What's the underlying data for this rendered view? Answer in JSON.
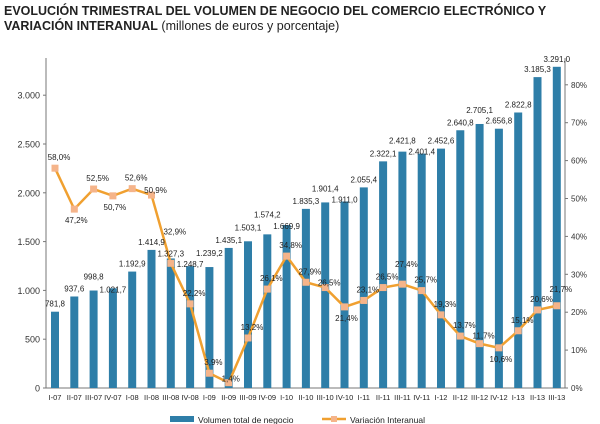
{
  "chart_data": {
    "type": "bar+line",
    "title": "EVOLUCIÓN TRIMESTRAL DEL VOLUMEN DE NEGOCIO DEL COMERCIO ELECTRÓNICO Y VARIACIÓN INTERANUAL",
    "subtitle": "(millones de euros y porcentaje)",
    "categories": [
      "I-07",
      "II-07",
      "III-07",
      "IV-07",
      "I-08",
      "II-08",
      "III-08",
      "IV-08",
      "I-09",
      "II-09",
      "III-09",
      "IV-09",
      "I-10",
      "II-10",
      "III-10",
      "IV-10",
      "I-11",
      "II-11",
      "III-11",
      "IV-11",
      "I-12",
      "II-12",
      "III-12",
      "IV-12",
      "I-13",
      "II-13",
      "III-13"
    ],
    "series": [
      {
        "name": "Volumen total de negocio",
        "type": "bar",
        "axis": "left",
        "color": "#2e7ea8",
        "values": [
          781.8,
          937.6,
          998.8,
          1021.7,
          1192.9,
          1414.9,
          1327.3,
          1248.7,
          1239.2,
          1435.1,
          1503.1,
          1574.2,
          1669.9,
          1835.3,
          1901.4,
          1911.0,
          2055.4,
          2322.1,
          2421.8,
          2401.4,
          2452.6,
          2640.8,
          2705.1,
          2656.8,
          2822.8,
          3185.3,
          3291.0
        ],
        "labels": [
          "781,8",
          "937,6",
          "998,8",
          "1.021,7",
          "1.192,9",
          "1.414,9",
          "1.327,3",
          "1.248,7",
          "1.239,2",
          "1.435,1",
          "1.503,1",
          "1.574,2",
          "1.669,9",
          "1.835,3",
          "1.901,4",
          "1.911,0",
          "2.055,4",
          "2.322,1",
          "2.421,8",
          "2.401,4",
          "2.452,6",
          "2.640,8",
          "2.705,1",
          "2.656,8",
          "2.822,8",
          "3.185,3",
          "3.291,0"
        ]
      },
      {
        "name": "Variación Interanual",
        "type": "line",
        "axis": "right",
        "color": "#f0a030",
        "marker_color": "#f5b48a",
        "values": [
          58.0,
          47.2,
          52.5,
          50.7,
          52.6,
          50.9,
          32.9,
          22.2,
          3.9,
          1.4,
          13.2,
          26.1,
          34.8,
          27.9,
          26.5,
          21.4,
          23.1,
          26.5,
          27.4,
          25.7,
          19.3,
          13.7,
          11.7,
          10.6,
          15.1,
          20.6,
          21.7
        ],
        "labels": [
          "58,0%",
          "47,2%",
          "52,5%",
          "50,7%",
          "52,6%",
          "50,9%",
          "32,9%",
          "22,2%",
          "3,9%",
          "1,4%",
          "13,2%",
          "26,1%",
          "34,8%",
          "27,9%",
          "26,5%",
          "21,4%",
          "23,1%",
          "26,5%",
          "27,4%",
          "25,7%",
          "19,3%",
          "13,7%",
          "11,7%",
          "10,6%",
          "15,1%",
          "20,6%",
          "21,7%"
        ]
      }
    ],
    "left_axis": {
      "ticks": [
        0,
        500,
        1000,
        1500,
        2000,
        2500,
        3000
      ],
      "tick_labels": [
        "0",
        "500",
        "1.000",
        "1.500",
        "2.000",
        "2.500",
        "3.000"
      ]
    },
    "right_axis": {
      "ticks": [
        0,
        10,
        20,
        30,
        40,
        50,
        60,
        70,
        80
      ],
      "tick_labels": [
        "0%",
        "10%",
        "20%",
        "30%",
        "40%",
        "50%",
        "60%",
        "70%",
        "80%"
      ]
    },
    "grid": false,
    "legend": "bottom"
  }
}
